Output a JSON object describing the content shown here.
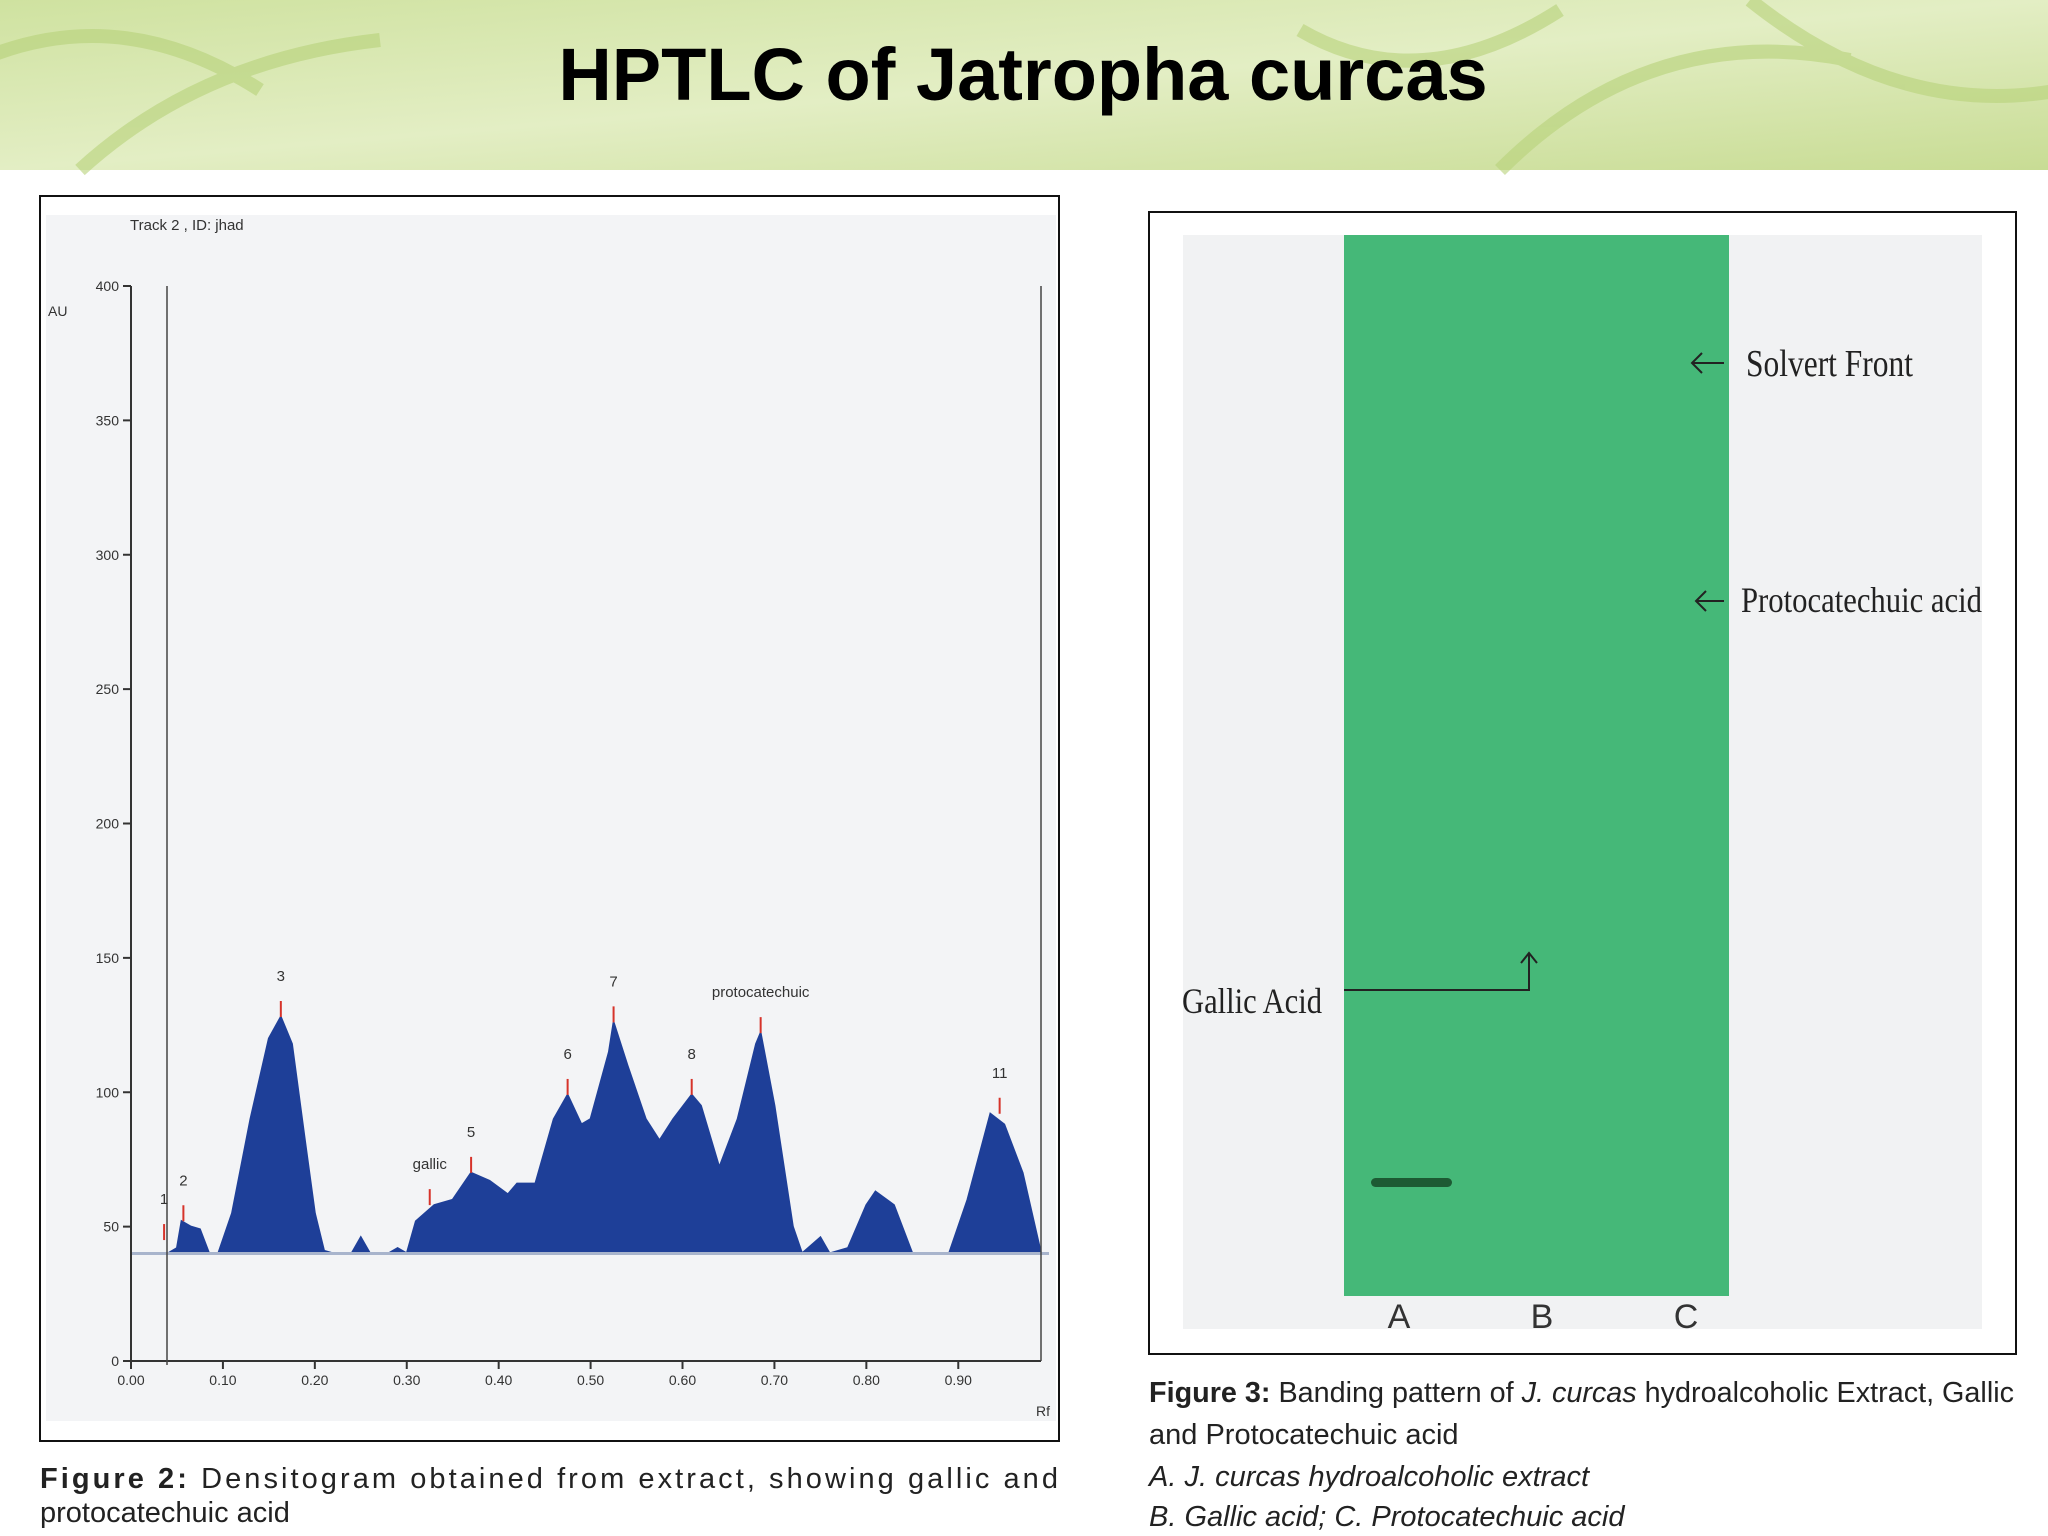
{
  "title": "HPTLC of Jatropha curcas",
  "chart_data": {
    "type": "area",
    "subtitle": "Track 2 , ID: jhad",
    "y_label": "AU",
    "x_label": "Rf",
    "x": [
      0.0,
      0.04,
      0.05,
      0.055,
      0.065,
      0.075,
      0.085,
      0.095,
      0.11,
      0.13,
      0.15,
      0.163,
      0.175,
      0.19,
      0.2,
      0.21,
      0.22,
      0.24,
      0.25,
      0.26,
      0.28,
      0.29,
      0.3,
      0.31,
      0.33,
      0.35,
      0.37,
      0.39,
      0.41,
      0.42,
      0.44,
      0.46,
      0.475,
      0.49,
      0.5,
      0.52,
      0.525,
      0.54,
      0.56,
      0.575,
      0.59,
      0.61,
      0.62,
      0.64,
      0.66,
      0.68,
      0.685,
      0.7,
      0.72,
      0.73,
      0.75,
      0.76,
      0.78,
      0.8,
      0.81,
      0.83,
      0.85,
      0.89,
      0.91,
      0.935,
      0.95,
      0.97,
      0.99
    ],
    "values": [
      40,
      40,
      42,
      52,
      50,
      49,
      40,
      40,
      55,
      90,
      120,
      128,
      118,
      80,
      55,
      41,
      40,
      40,
      46,
      40,
      40,
      42,
      40,
      52,
      58,
      60,
      70,
      67,
      62,
      66,
      66,
      90,
      99,
      88,
      90,
      115,
      126,
      110,
      90,
      82,
      90,
      99,
      95,
      72,
      90,
      118,
      122,
      95,
      50,
      40,
      46,
      40,
      42,
      58,
      63,
      58,
      40,
      40,
      60,
      92,
      88,
      70,
      40
    ],
    "color": "#1e3f98",
    "baseline": 40,
    "baseline_color": "#a8b4cc",
    "xlim": [
      0,
      0.99
    ],
    "ylim": [
      0,
      400
    ],
    "xticks": [
      {
        "value": 0,
        "label": "0.00"
      },
      {
        "value": 0.1,
        "label": "0.10"
      },
      {
        "value": 0.2,
        "label": "0.20"
      },
      {
        "value": 0.3,
        "label": "0.30"
      },
      {
        "value": 0.4,
        "label": "0.40"
      },
      {
        "value": 0.5,
        "label": "0.50"
      },
      {
        "value": 0.6,
        "label": "0.60"
      },
      {
        "value": 0.7,
        "label": "0.70"
      },
      {
        "value": 0.8,
        "label": "0.80"
      },
      {
        "value": 0.9,
        "label": "0.90"
      }
    ],
    "yticks": [
      0,
      50,
      100,
      150,
      200,
      250,
      300,
      350,
      400
    ],
    "peak_color": "#d6332a",
    "peaks": [
      {
        "label": "1",
        "x": 0.036,
        "y": 45
      },
      {
        "label": "2",
        "x": 0.057,
        "y": 52
      },
      {
        "label": "3",
        "x": 0.163,
        "y": 128
      },
      {
        "label": "gallic",
        "x": 0.325,
        "y": 58
      },
      {
        "label": "5",
        "x": 0.37,
        "y": 70
      },
      {
        "label": "6",
        "x": 0.475,
        "y": 99
      },
      {
        "label": "7",
        "x": 0.525,
        "y": 126
      },
      {
        "label": "8",
        "x": 0.61,
        "y": 99
      },
      {
        "label": "protocatechuic",
        "x": 0.685,
        "y": 122
      },
      {
        "label": "11",
        "x": 0.945,
        "y": 92
      }
    ]
  },
  "figure2_caption": {
    "label": "Figure 2:",
    "line_1": "Densitogram obtained from extract, showing gallic and",
    "line_2": "protocatechuic acid"
  },
  "plate": {
    "solvent_front": "Solvert Front",
    "protocatechuic": "Protocatechuic acid",
    "gallic": "Gallic Acid",
    "lanes": [
      "A",
      "B",
      "C"
    ]
  },
  "figure3_caption": {
    "label": "Figure 3:",
    "text_1": "Banding pattern of",
    "species": "J. curcas",
    "text_2": "hydroalcoholic Extract, Gallic",
    "line_2": "and Protocatechuic acid",
    "line_3": "A. J. curcas hydroalcoholic extract",
    "line_4": "B. Gallic acid; C. Protocatechuic acid"
  }
}
